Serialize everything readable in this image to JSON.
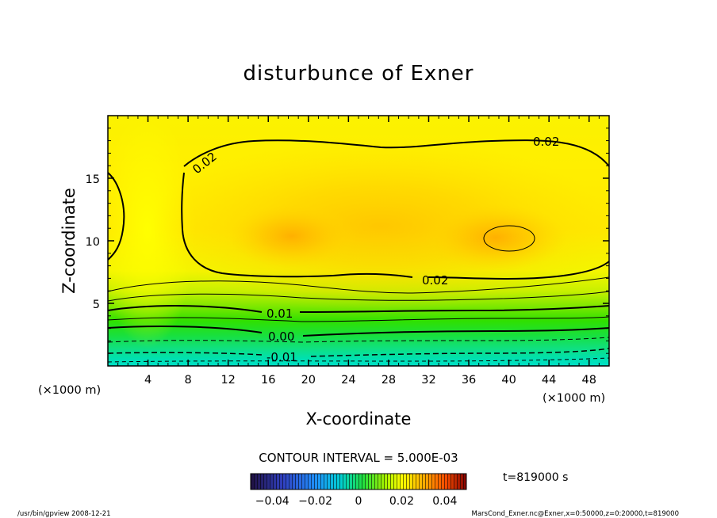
{
  "chart_data": {
    "type": "contour",
    "title": "disturbunce of Exner",
    "xlabel": "X-coordinate",
    "ylabel": "Z-coordinate",
    "x_unit": "(×1000 m)",
    "y_unit": "(×1000 m)",
    "xlim": [
      0,
      50
    ],
    "ylim": [
      0,
      20
    ],
    "x_ticks": [
      4,
      8,
      12,
      16,
      20,
      24,
      28,
      32,
      36,
      40,
      44,
      48
    ],
    "y_ticks": [
      5,
      10,
      15
    ],
    "contour_interval_text": "CONTOUR INTERVAL = 5.000E-03",
    "contour_interval": 0.005,
    "contour_labels": [
      {
        "text": "0.02",
        "x": 43.5,
        "z": 18.0
      },
      {
        "text": "0.02",
        "x": 9.5,
        "z": 16.2
      },
      {
        "text": "0.02",
        "x": 33.0,
        "z": 6.7
      },
      {
        "text": "0.01",
        "x": 17.0,
        "z": 4.2
      },
      {
        "text": "0.00",
        "x": 17.0,
        "z": 2.4
      },
      {
        "text": "-0.01",
        "x": 17.5,
        "z": 0.8
      }
    ],
    "colorbar": {
      "ticks": [
        "−0.04",
        "−0.02",
        "0",
        "0.02",
        "0.04"
      ],
      "range": [
        -0.05,
        0.05
      ]
    },
    "time_label": "t=819000 s",
    "maxima": [
      {
        "x": 17,
        "z": 10.5
      },
      {
        "x": 40,
        "z": 10.2
      }
    ]
  },
  "footer": {
    "left": "/usr/bin/gpview   2008-12-21",
    "right": "MarsCond_Exner.nc@Exner,x=0:50000,z=0:20000,t=819000"
  },
  "colors": {
    "teal": "#00e0c0",
    "green": "#20e030",
    "yellow": "#ffff00",
    "orange": "#ffb000"
  }
}
